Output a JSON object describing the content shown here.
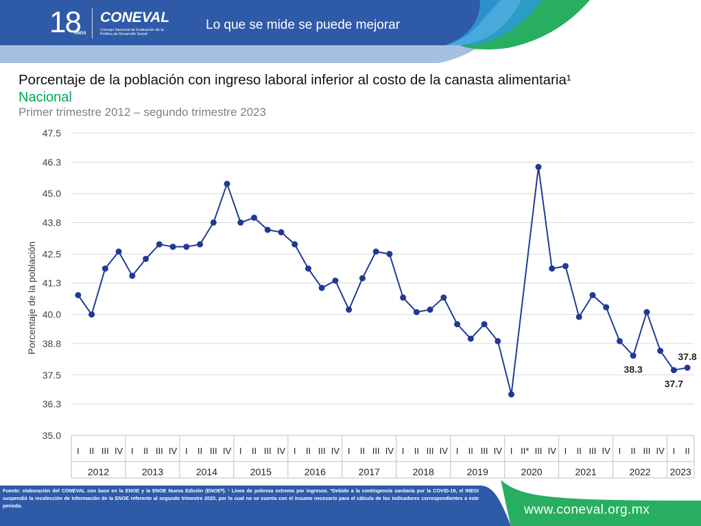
{
  "header": {
    "logo_years": "18",
    "logo_years_label": "AÑOS",
    "logo_name": "CONEVAL",
    "logo_subtitle": "Consejo Nacional de Evaluación de la Política de Desarrollo Social",
    "slogan": "Lo que se mide se puede mejorar"
  },
  "title": "Porcentaje de la población con ingreso laboral inferior al costo de la canasta alimentaria¹",
  "subtitle": "Nacional",
  "period": "Primer trimestre 2012 – segundo trimestre 2023",
  "footer": {
    "source": "Fuente: elaboración del CONEVAL con base en la ENOE y la ENOE Nueva Edición (ENOEᴺ). ¹ Línea de pobreza extrema por ingresos. *Debido a la contingencia sanitaria por la COVID-19, el INEGI suspendió la recolección de información de la ENOE referente al segundo trimestre 2020, por lo cual no se cuenta con el insumo necesario para el cálculo de los indicadores correspondientes a este periodo.",
    "url": "www.coneval.org.mx"
  },
  "colors": {
    "series": "#1f3a93",
    "banner_blue": "#2f5aa8",
    "banner_green": "#27ae60",
    "subtitle_green": "#00a651",
    "grid": "#d9d9d9"
  },
  "chart_data": {
    "type": "line",
    "ylabel": "Porcentaje de la población",
    "ylim": [
      35.0,
      47.5
    ],
    "yticks": [
      "35.0",
      "36.3",
      "37.5",
      "38.8",
      "40.0",
      "41.3",
      "42.5",
      "43.8",
      "45.0",
      "46.3",
      "47.5"
    ],
    "grid": "horizontal",
    "years": [
      "2012",
      "2013",
      "2014",
      "2015",
      "2016",
      "2017",
      "2018",
      "2019",
      "2020",
      "2021",
      "2022",
      "2023"
    ],
    "quarter_labels": [
      [
        "I",
        "II",
        "III",
        "IV"
      ],
      [
        "I",
        "II",
        "III",
        "IV"
      ],
      [
        "I",
        "II",
        "III",
        "IV"
      ],
      [
        "I",
        "II",
        "III",
        "IV"
      ],
      [
        "I",
        "II",
        "III",
        "IV"
      ],
      [
        "I",
        "II",
        "III",
        "IV"
      ],
      [
        "I",
        "II",
        "III",
        "IV"
      ],
      [
        "I",
        "II",
        "III",
        "IV"
      ],
      [
        "I",
        "II*",
        "III",
        "IV"
      ],
      [
        "I",
        "II",
        "III",
        "IV"
      ],
      [
        "I",
        "II",
        "III",
        "IV"
      ],
      [
        "I",
        "II"
      ]
    ],
    "series": [
      {
        "values": [
          40.8,
          40.0,
          41.9,
          42.6,
          41.6,
          42.3,
          42.9,
          42.8,
          42.8,
          42.9,
          43.8,
          45.4,
          43.8,
          44.0,
          43.5,
          43.4,
          42.9,
          41.9,
          41.1,
          41.4,
          40.2,
          41.5,
          42.6,
          42.5,
          40.7,
          40.1,
          40.2,
          40.7,
          39.6,
          39.0,
          39.6,
          38.9,
          36.7,
          null,
          46.1,
          41.9,
          42.0,
          39.9,
          40.8,
          40.3,
          38.9,
          38.3,
          40.1,
          38.5,
          37.7,
          37.8
        ]
      }
    ],
    "data_labels": [
      {
        "index": 41,
        "text": "38.3",
        "position": "below"
      },
      {
        "index": 44,
        "text": "37.7",
        "position": "below"
      },
      {
        "index": 45,
        "text": "37.8",
        "position": "above"
      }
    ]
  }
}
